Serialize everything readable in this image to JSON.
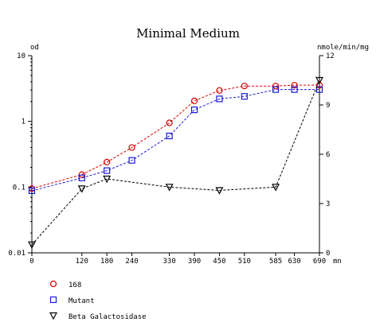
{
  "chart_data": {
    "type": "line",
    "title": "Minimal Medium",
    "ylabel_left": "od",
    "ylabel_right": "nmole/min/mg",
    "x_unit": "mn",
    "x_ticks": [
      0,
      120,
      180,
      240,
      330,
      390,
      450,
      510,
      585,
      630,
      690
    ],
    "xlim": [
      0,
      690
    ],
    "y_left": {
      "scale": "log",
      "lim": [
        0.01,
        10
      ],
      "ticks": [
        0.01,
        0.1,
        1,
        10
      ],
      "tick_labels": [
        "0.01",
        "0.1",
        "1",
        "10"
      ]
    },
    "y_right": {
      "scale": "linear",
      "lim": [
        0,
        12
      ],
      "ticks": [
        0,
        3,
        6,
        9,
        12
      ],
      "tick_labels": [
        "0",
        "3",
        "6",
        "9",
        "12"
      ]
    },
    "grid": false,
    "legend_position": "bottom-left",
    "series": [
      {
        "name": "168",
        "axis": "left",
        "marker": "circle",
        "color": "#d40000",
        "x": [
          0,
          120,
          180,
          240,
          330,
          390,
          450,
          510,
          585,
          630,
          690
        ],
        "y": [
          0.095,
          0.155,
          0.24,
          0.4,
          0.95,
          2.05,
          2.95,
          3.45,
          3.45,
          3.55,
          3.55
        ]
      },
      {
        "name": "Mutant",
        "axis": "left",
        "marker": "square",
        "color": "#1a1ad4",
        "x": [
          0,
          120,
          180,
          240,
          330,
          390,
          450,
          510,
          585,
          630,
          690
        ],
        "y": [
          0.088,
          0.138,
          0.178,
          0.255,
          0.6,
          1.5,
          2.2,
          2.4,
          3.05,
          3.05,
          3.05
        ]
      },
      {
        "name": "Beta Galactosidase",
        "axis": "right",
        "marker": "triangle-down",
        "color": "#000000",
        "x": [
          0,
          120,
          180,
          330,
          450,
          585,
          690
        ],
        "y": [
          0.5,
          3.9,
          4.5,
          4.0,
          3.8,
          4.0,
          10.5
        ]
      }
    ]
  }
}
